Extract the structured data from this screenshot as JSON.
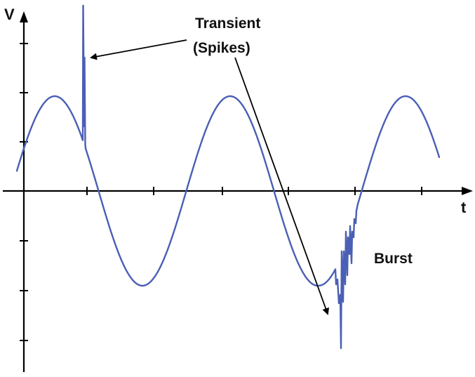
{
  "axes": {
    "y_label": "V",
    "x_label": "t"
  },
  "annotations": {
    "transient_line1": "Transient",
    "transient_line2": "(Spikes)",
    "burst": "Burst"
  },
  "colors": {
    "waveform": "#4a5fb5",
    "axes": "#000000"
  }
}
